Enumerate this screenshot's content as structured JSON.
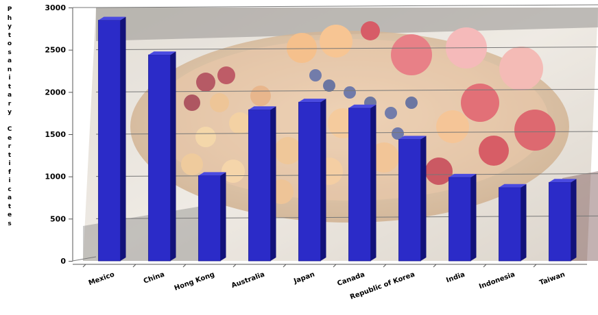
{
  "chart_data": {
    "type": "bar",
    "title": "",
    "xlabel": "",
    "ylabel": "Phytosanitary Certificates",
    "categories": [
      "Mexico",
      "China",
      "Hong Kong",
      "Australia",
      "Japan",
      "Canada",
      "Republic of Korea",
      "India",
      "Indonesia",
      "Taiwan"
    ],
    "values": [
      2850,
      2440,
      1010,
      1790,
      1880,
      1810,
      1440,
      990,
      870,
      930
    ],
    "ylim": [
      0,
      3000
    ],
    "yticks": [
      "0",
      "500",
      "1000",
      "1500",
      "2000",
      "2500",
      "3000"
    ],
    "grid": true,
    "legend": "none",
    "bar_color": "#2B2BC8",
    "bar_side_color": "#12127A",
    "bar_top_color": "#4A4AE0",
    "background": "photo of a woven basket of fruit (cherries, apricots, blueberries, peaches, strawberries)"
  }
}
